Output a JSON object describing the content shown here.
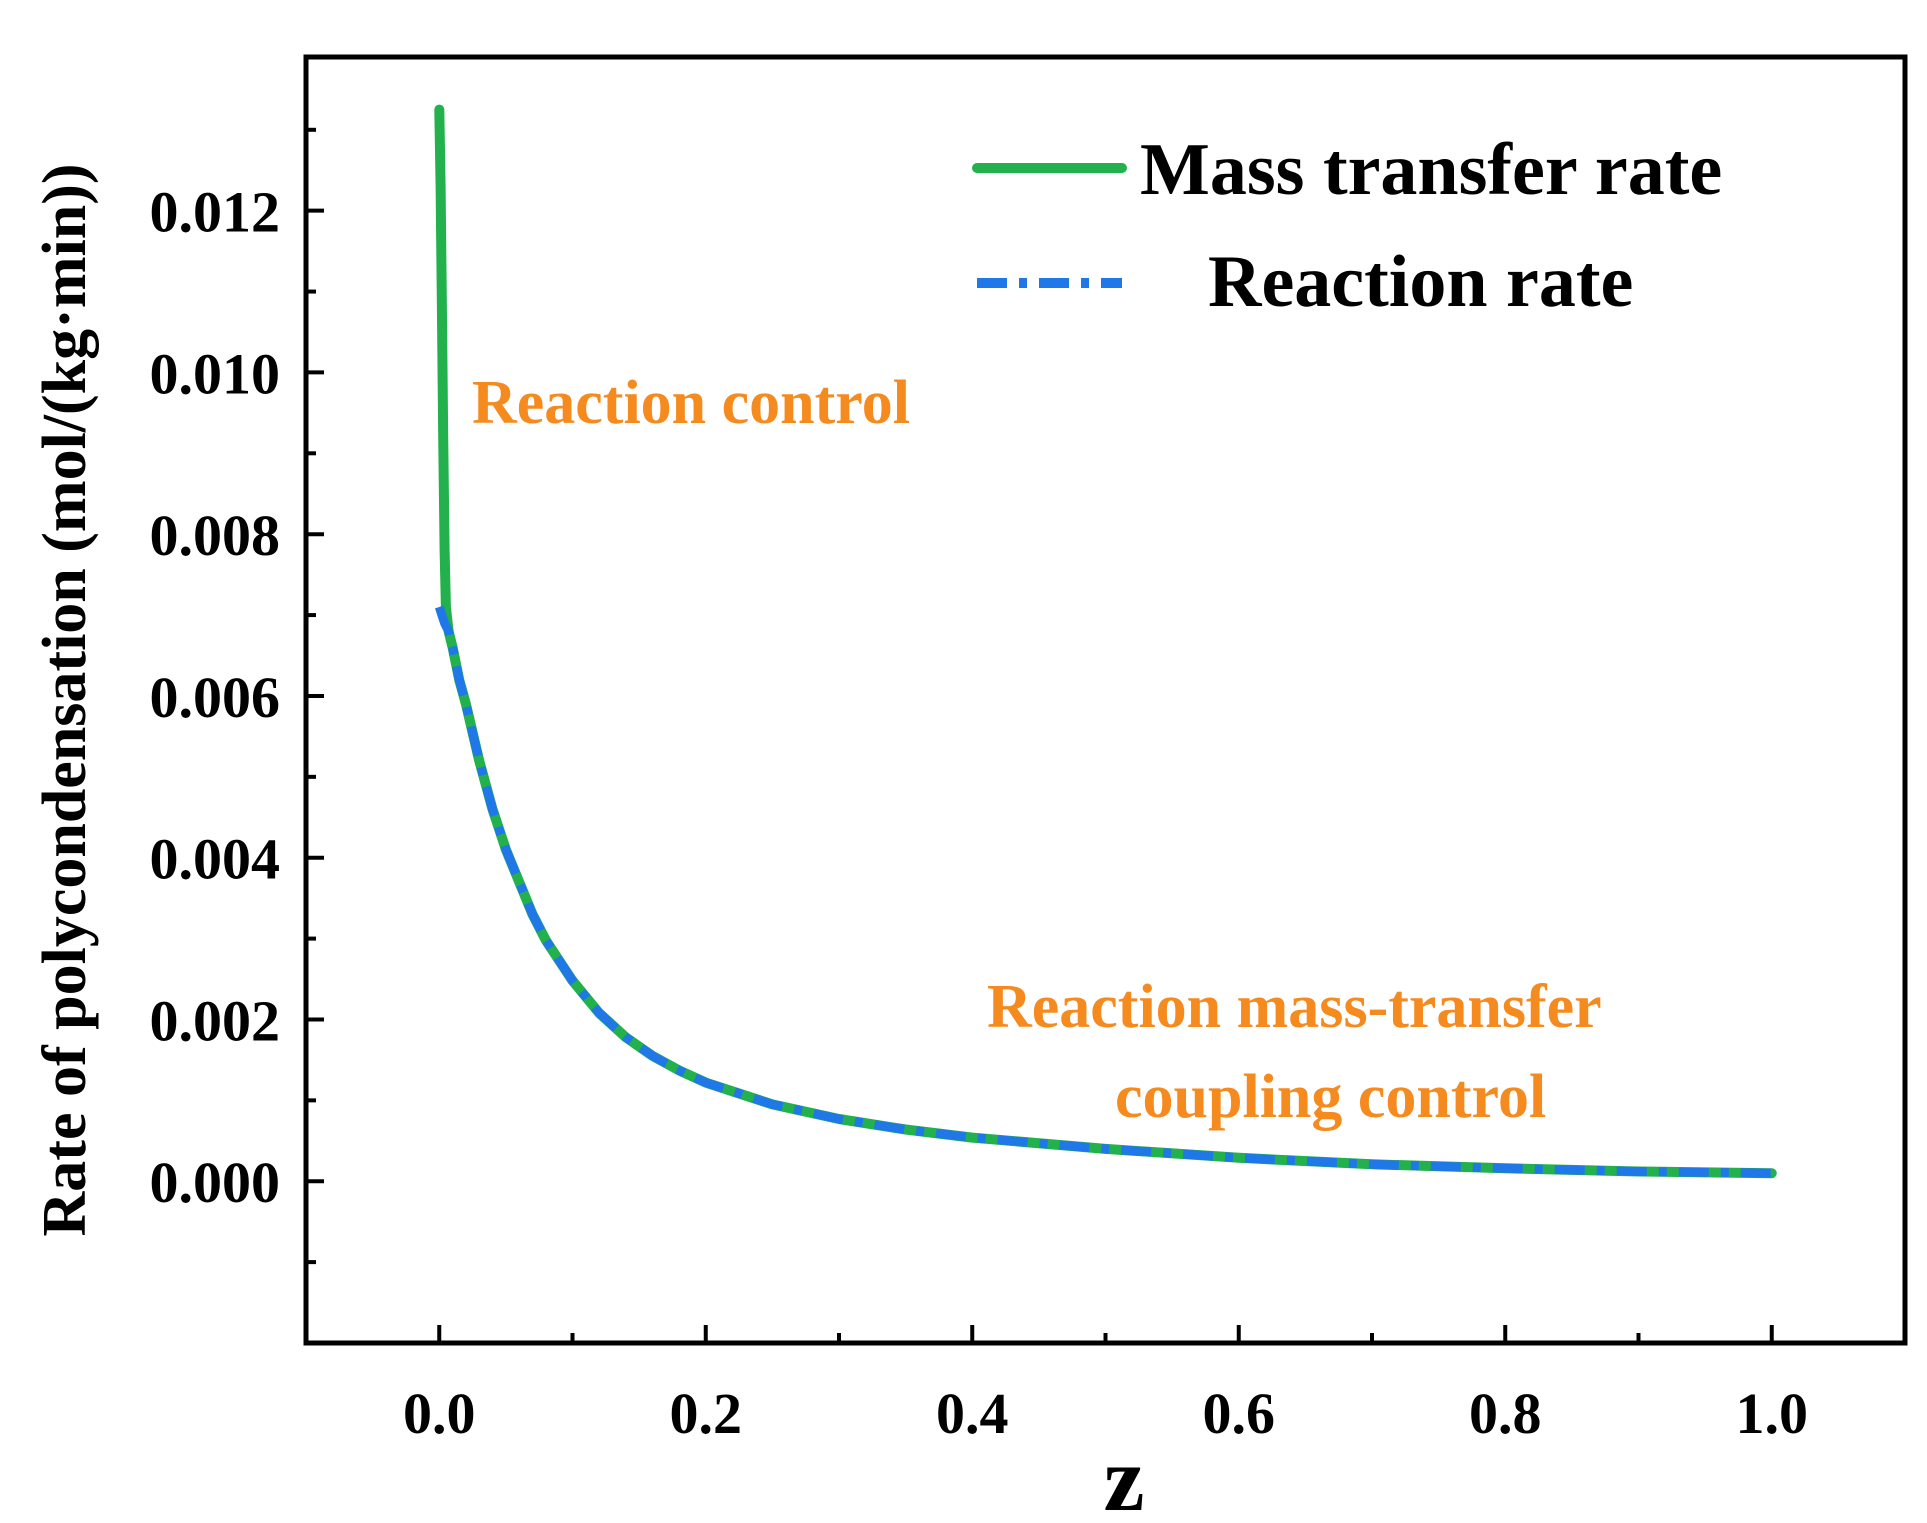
{
  "chart_data": {
    "type": "line",
    "title": "",
    "xlabel": "z",
    "ylabel": "Rate of polycondensation (mol/(kg·min))",
    "xlim": [
      -0.1,
      1.1
    ],
    "ylim": [
      -0.002,
      0.0139
    ],
    "grid": false,
    "legend_position": "top-right",
    "x_ticks": [
      0.0,
      0.2,
      0.4,
      0.6,
      0.8,
      1.0
    ],
    "x_tick_labels": [
      "0.0",
      "0.2",
      "0.4",
      "0.6",
      "0.8",
      "1.0"
    ],
    "y_ticks": [
      0.0,
      0.002,
      0.004,
      0.006,
      0.008,
      0.01,
      0.012
    ],
    "y_tick_labels": [
      "0.000",
      "0.002",
      "0.004",
      "0.006",
      "0.008",
      "0.010",
      "0.012"
    ],
    "series": [
      {
        "name": "Mass transfer rate",
        "color": "#22b14c",
        "style": "solid",
        "x": [
          0.0,
          0.001,
          0.002,
          0.003,
          0.004,
          0.005,
          0.007,
          0.01,
          0.015,
          0.02,
          0.03,
          0.04,
          0.05,
          0.06,
          0.07,
          0.08,
          0.1,
          0.12,
          0.14,
          0.16,
          0.18,
          0.2,
          0.25,
          0.3,
          0.35,
          0.4,
          0.5,
          0.6,
          0.7,
          0.8,
          0.9,
          1.0
        ],
        "y": [
          0.01325,
          0.0123,
          0.0108,
          0.0092,
          0.0078,
          0.0071,
          0.0068,
          0.0066,
          0.0062,
          0.0059,
          0.0052,
          0.0046,
          0.0041,
          0.0037,
          0.0033,
          0.00298,
          0.00248,
          0.00208,
          0.00178,
          0.00155,
          0.00137,
          0.00122,
          0.00095,
          0.00077,
          0.00064,
          0.00054,
          0.0004,
          0.00029,
          0.00021,
          0.00016,
          0.00012,
          0.0001
        ]
      },
      {
        "name": "Reaction rate",
        "color": "#1f77e8",
        "style": "dashdot",
        "x": [
          0.0,
          0.002,
          0.004,
          0.007,
          0.01,
          0.015,
          0.02,
          0.03,
          0.04,
          0.05,
          0.06,
          0.07,
          0.08,
          0.1,
          0.12,
          0.14,
          0.16,
          0.18,
          0.2,
          0.25,
          0.3,
          0.35,
          0.4,
          0.5,
          0.6,
          0.7,
          0.8,
          0.9,
          1.0
        ],
        "y": [
          0.0071,
          0.007,
          0.0069,
          0.0068,
          0.0066,
          0.0062,
          0.0059,
          0.0052,
          0.0046,
          0.0041,
          0.0037,
          0.0033,
          0.00298,
          0.00248,
          0.00208,
          0.00178,
          0.00155,
          0.00137,
          0.00122,
          0.00095,
          0.00077,
          0.00064,
          0.00054,
          0.0004,
          0.00029,
          0.00021,
          0.00016,
          0.00012,
          0.0001
        ]
      }
    ],
    "annotations": [
      {
        "text": "Reaction control",
        "color": "#f58a1f"
      },
      {
        "text": "Reaction mass-transfer",
        "color": "#f58a1f"
      },
      {
        "text": "coupling control",
        "color": "#f58a1f"
      }
    ]
  }
}
